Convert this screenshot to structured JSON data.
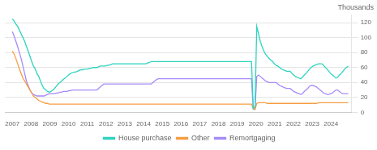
{
  "chart_data": {
    "type": "line",
    "title": "Thousands",
    "x": [
      2007,
      2007.094,
      2007.188,
      2007.281,
      2007.375,
      2007.469,
      2007.563,
      2007.657,
      2007.751,
      2007.844,
      2007.938,
      2008.032,
      2008.126,
      2008.22,
      2008.314,
      2008.407,
      2008.501,
      2008.595,
      2008.689,
      2008.783,
      2008.876,
      2008.97,
      2009.064,
      2009.158,
      2009.252,
      2009.346,
      2009.439,
      2009.533,
      2009.627,
      2009.721,
      2009.815,
      2009.908,
      2010.002,
      2010.096,
      2010.19,
      2010.284,
      2010.378,
      2010.471,
      2010.565,
      2010.659,
      2010.753,
      2010.847,
      2010.941,
      2011.034,
      2011.128,
      2011.222,
      2011.316,
      2011.41,
      2011.503,
      2011.597,
      2011.691,
      2011.785,
      2011.879,
      2011.973,
      2012.066,
      2012.16,
      2012.254,
      2012.348,
      2012.442,
      2012.535,
      2012.629,
      2012.723,
      2012.817,
      2012.911,
      2013.005,
      2013.098,
      2013.192,
      2013.286,
      2013.38,
      2013.474,
      2013.568,
      2013.661,
      2013.755,
      2013.849,
      2013.943,
      2014.037,
      2014.13,
      2014.224,
      2014.318,
      2014.412,
      2014.506,
      2014.6,
      2014.693,
      2014.787,
      2014.881,
      2014.975,
      2015.069,
      2015.163,
      2015.256,
      2015.35,
      2015.444,
      2015.538,
      2015.632,
      2015.725,
      2015.819,
      2015.913,
      2016.007,
      2016.101,
      2016.195,
      2016.288,
      2016.382,
      2016.476,
      2016.57,
      2016.664,
      2016.757,
      2016.851,
      2016.945,
      2017.039,
      2017.133,
      2017.227,
      2017.32,
      2017.414,
      2017.508,
      2017.602,
      2017.696,
      2017.79,
      2017.883,
      2017.977,
      2018.071,
      2018.165,
      2018.259,
      2018.352,
      2018.446,
      2018.54,
      2018.634,
      2018.728,
      2018.822,
      2018.915,
      2019.009,
      2019.103,
      2019.197,
      2019.291,
      2019.385,
      2019.478,
      2019.572,
      2019.666,
      2019.76,
      2019.854,
      2019.947,
      2020.041,
      2020.135,
      2020.229,
      2020.323,
      2020.417,
      2020.51,
      2020.604,
      2020.698,
      2020.792,
      2020.886,
      2020.979,
      2021.073,
      2021.167,
      2021.261,
      2021.355,
      2021.449,
      2021.542,
      2021.636,
      2021.73,
      2021.824,
      2021.918,
      2022.012,
      2022.105,
      2022.199,
      2022.293,
      2022.387,
      2022.481,
      2022.574,
      2022.668,
      2022.762,
      2022.856,
      2022.95,
      2023.044,
      2023.137,
      2023.231,
      2023.325,
      2023.419,
      2023.513,
      2023.606,
      2023.7,
      2023.794,
      2023.888,
      2023.982,
      2024.076,
      2024.169,
      2024.263,
      2024.357,
      2024.451,
      2024.545,
      2024.639,
      2024.732,
      2024.826,
      2024.92
    ],
    "series": [
      {
        "name": "House purchase",
        "color": "#2dd4bf",
        "values": [
          125,
          122,
          118,
          115,
          110,
          105,
          100,
          95,
          88,
          82,
          75,
          68,
          62,
          58,
          52,
          48,
          42,
          36,
          32,
          30,
          28,
          27,
          28,
          30,
          32,
          35,
          38,
          40,
          42,
          44,
          46,
          48,
          50,
          52,
          53,
          54,
          54,
          55,
          56,
          57,
          57,
          58,
          58,
          58,
          59,
          59,
          60,
          60,
          60,
          61,
          62,
          62,
          62,
          62,
          63,
          63,
          64,
          65,
          65,
          65,
          65,
          65,
          65,
          65,
          65,
          65,
          65,
          65,
          65,
          65,
          65,
          65,
          65,
          65,
          65,
          65,
          65,
          66,
          67,
          68,
          68,
          68,
          68,
          68,
          68,
          68,
          68,
          68,
          68,
          68,
          68,
          68,
          68,
          68,
          68,
          68,
          68,
          68,
          68,
          68,
          68,
          68,
          68,
          68,
          68,
          68,
          68,
          68,
          68,
          68,
          68,
          68,
          68,
          68,
          68,
          68,
          68,
          68,
          68,
          68,
          68,
          68,
          68,
          68,
          68,
          68,
          68,
          68,
          68,
          68,
          68,
          68,
          68,
          68,
          68,
          68,
          68,
          5,
          8,
          115,
          105,
          95,
          88,
          82,
          78,
          75,
          72,
          70,
          68,
          65,
          63,
          62,
          60,
          58,
          57,
          56,
          55,
          55,
          55,
          52,
          50,
          48,
          47,
          46,
          45,
          47,
          50,
          52,
          55,
          58,
          60,
          62,
          63,
          64,
          65,
          65,
          65,
          63,
          60,
          58,
          55,
          52,
          50,
          48,
          46,
          47,
          50,
          52,
          55,
          58,
          60,
          62
        ]
      },
      {
        "name": "Other",
        "color": "#f59e42",
        "values": [
          82,
          78,
          72,
          65,
          58,
          52,
          46,
          42,
          38,
          34,
          30,
          26,
          22,
          20,
          18,
          16,
          15,
          14,
          13,
          12,
          12,
          11,
          11,
          11,
          11,
          11,
          11,
          11,
          11,
          11,
          11,
          11,
          11,
          11,
          11,
          11,
          11,
          11,
          11,
          11,
          11,
          11,
          11,
          11,
          11,
          11,
          11,
          11,
          11,
          11,
          11,
          11,
          11,
          11,
          11,
          11,
          11,
          11,
          11,
          11,
          11,
          11,
          11,
          11,
          11,
          11,
          11,
          11,
          11,
          11,
          11,
          11,
          11,
          11,
          11,
          11,
          11,
          11,
          11,
          11,
          11,
          11,
          11,
          11,
          11,
          11,
          11,
          11,
          11,
          11,
          11,
          11,
          11,
          11,
          11,
          11,
          11,
          11,
          11,
          11,
          11,
          11,
          11,
          11,
          11,
          11,
          11,
          11,
          11,
          11,
          11,
          11,
          11,
          11,
          11,
          11,
          11,
          11,
          11,
          11,
          11,
          11,
          11,
          11,
          11,
          11,
          11,
          11,
          11,
          11,
          11,
          11,
          11,
          11,
          11,
          11,
          11,
          5,
          4,
          12,
          13,
          13,
          13,
          13,
          13,
          12,
          12,
          12,
          12,
          12,
          12,
          12,
          12,
          12,
          12,
          12,
          12,
          12,
          12,
          12,
          12,
          12,
          12,
          12,
          12,
          12,
          12,
          12,
          12,
          12,
          12,
          12,
          12,
          12,
          13,
          13,
          13,
          13,
          13,
          13,
          13,
          13,
          13,
          13,
          13,
          13,
          13,
          13,
          13,
          13,
          13,
          13
        ]
      },
      {
        "name": "Remortgaging",
        "color": "#a78bfa",
        "values": [
          108,
          102,
          95,
          88,
          80,
          72,
          62,
          52,
          42,
          36,
          30,
          26,
          24,
          23,
          22,
          22,
          22,
          22,
          22,
          23,
          24,
          25,
          25,
          25,
          25,
          26,
          26,
          27,
          27,
          28,
          28,
          28,
          29,
          29,
          30,
          30,
          30,
          30,
          30,
          30,
          30,
          30,
          30,
          30,
          30,
          30,
          30,
          30,
          30,
          32,
          34,
          36,
          38,
          38,
          38,
          38,
          38,
          38,
          38,
          38,
          38,
          38,
          38,
          38,
          38,
          38,
          38,
          38,
          38,
          38,
          38,
          38,
          38,
          38,
          38,
          38,
          38,
          38,
          38,
          38,
          40,
          42,
          44,
          45,
          45,
          45,
          45,
          45,
          45,
          45,
          45,
          45,
          45,
          45,
          45,
          45,
          45,
          45,
          45,
          45,
          45,
          45,
          45,
          45,
          45,
          45,
          45,
          45,
          45,
          45,
          45,
          45,
          45,
          45,
          45,
          45,
          45,
          45,
          45,
          45,
          45,
          45,
          45,
          45,
          45,
          45,
          45,
          45,
          45,
          45,
          45,
          45,
          45,
          45,
          45,
          45,
          45,
          5,
          4,
          48,
          50,
          48,
          46,
          44,
          42,
          41,
          40,
          40,
          40,
          40,
          40,
          38,
          36,
          35,
          34,
          33,
          32,
          32,
          32,
          30,
          28,
          27,
          26,
          25,
          24,
          25,
          28,
          30,
          32,
          35,
          36,
          36,
          35,
          34,
          32,
          30,
          28,
          26,
          25,
          24,
          24,
          25,
          26,
          28,
          30,
          30,
          28,
          26,
          25,
          25,
          25,
          25
        ]
      }
    ],
    "xlim": [
      2006.6,
      2025.1
    ],
    "xticks": [
      2007,
      2008,
      2009,
      2010,
      2011,
      2012,
      2013,
      2014,
      2015,
      2016,
      2017,
      2018,
      2019,
      2020,
      2021,
      2022,
      2023,
      2024
    ],
    "ylim": [
      0,
      130
    ],
    "yticks": [
      0,
      20,
      40,
      60,
      80,
      100,
      120
    ],
    "grid": "y",
    "legend": "bottom"
  }
}
